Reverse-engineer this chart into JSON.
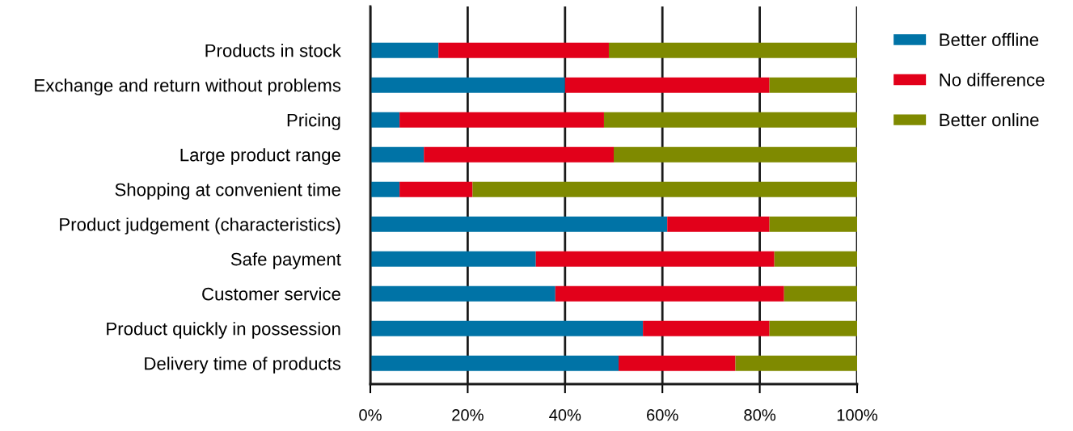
{
  "chart_data": {
    "type": "bar",
    "orientation": "horizontal",
    "stacked": true,
    "categories": [
      "Products in stock",
      "Exchange and return without problems",
      "Pricing",
      "Large product range",
      "Shopping at convenient time",
      "Product judgement (characteristics)",
      "Safe payment",
      "Customer service",
      "Product quickly in possession",
      "Delivery time of products"
    ],
    "series": [
      {
        "name": "Better offline",
        "color": "#0073a6",
        "values": [
          14,
          40,
          6,
          11,
          6,
          61,
          34,
          38,
          56,
          51
        ]
      },
      {
        "name": "No difference",
        "color": "#e2001a",
        "values": [
          35,
          42,
          42,
          39,
          15,
          21,
          49,
          47,
          26,
          24
        ]
      },
      {
        "name": "Better online",
        "color": "#7f8a00",
        "values": [
          51,
          18,
          52,
          50,
          79,
          18,
          17,
          15,
          18,
          25
        ]
      }
    ],
    "xlim": [
      0,
      100
    ],
    "xticks": [
      {
        "value": 0,
        "label": "0%"
      },
      {
        "value": 20,
        "label": "20%"
      },
      {
        "value": 40,
        "label": "40%"
      },
      {
        "value": 60,
        "label": "60%"
      },
      {
        "value": 80,
        "label": "80%"
      },
      {
        "value": 100,
        "label": "100%"
      }
    ],
    "grid": "x",
    "legend": "top right"
  }
}
